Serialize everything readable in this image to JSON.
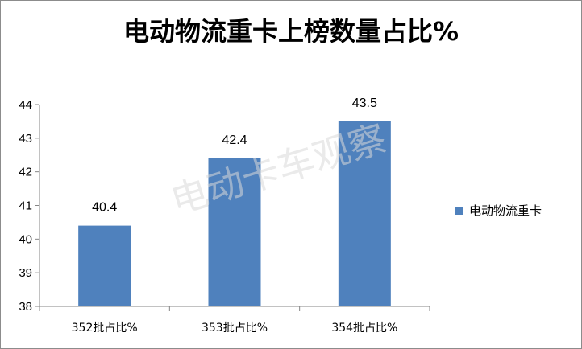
{
  "chart_data": {
    "type": "bar",
    "title": "电动物流重卡上榜数量占比%",
    "categories": [
      "352批占比%",
      "353批占比%",
      "354批占比%"
    ],
    "series": [
      {
        "name": "电动物流重卡",
        "values": [
          40.4,
          42.4,
          43.5
        ],
        "color": "#4f81bd"
      }
    ],
    "data_labels": [
      "40.4",
      "42.4",
      "43.5"
    ],
    "ylim": [
      38,
      44
    ],
    "yticks": [
      "38",
      "39",
      "40",
      "41",
      "42",
      "43",
      "44"
    ],
    "grid": false,
    "legend_position": "right",
    "watermark": "电动卡车观察",
    "xlabel": "",
    "ylabel": ""
  }
}
